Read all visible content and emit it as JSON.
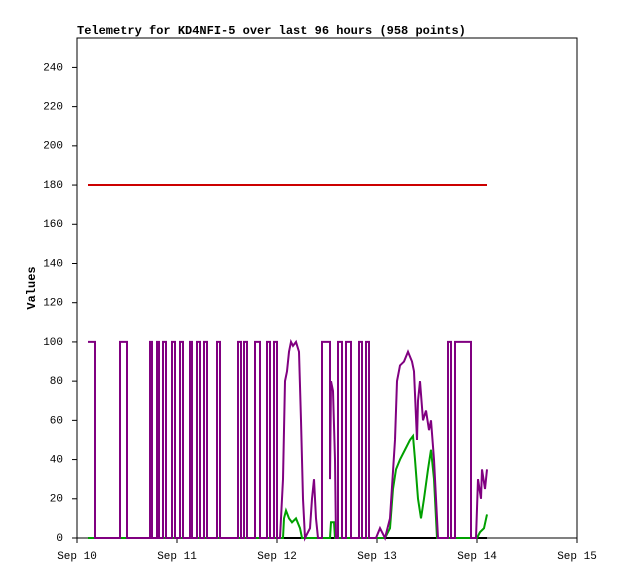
{
  "chart_data": {
    "type": "line",
    "title": "Telemetry for KD4NFI-5 over last 96 hours (958 points)",
    "y_label": "Values",
    "xlim": [
      10,
      15
    ],
    "xticks": [
      {
        "value": 10,
        "label": "Sep 10"
      },
      {
        "value": 11,
        "label": "Sep 11"
      },
      {
        "value": 12,
        "label": "Sep 12"
      },
      {
        "value": 13,
        "label": "Sep 13"
      },
      {
        "value": 14,
        "label": "Sep 14"
      },
      {
        "value": 15,
        "label": "Sep 15"
      }
    ],
    "ylim": [
      0,
      255
    ],
    "yticks": [
      0,
      20,
      40,
      60,
      80,
      100,
      120,
      140,
      160,
      180,
      200,
      220,
      240
    ],
    "grid": false,
    "series": [
      {
        "color": "#cc0000",
        "x": [
          10.11,
          14.1
        ],
        "values": [
          180,
          180
        ]
      },
      {
        "color": "#000000",
        "x": [
          10.11,
          14.1
        ],
        "values": [
          0,
          0
        ]
      },
      {
        "color": "#00a000",
        "x": [
          10.11,
          12.06,
          12.07,
          12.09,
          12.12,
          12.15,
          12.19,
          12.23,
          12.25,
          12.53,
          12.54,
          12.57,
          12.58,
          13.08,
          13.13,
          13.16,
          13.19,
          13.23,
          13.28,
          13.33,
          13.36,
          13.38,
          13.41,
          13.44,
          13.47,
          13.51,
          13.54,
          13.57,
          13.59,
          13.6,
          14,
          14.03,
          14.07,
          14.1
        ],
        "values": [
          0,
          0,
          10,
          14,
          10,
          8,
          10,
          5,
          0,
          0,
          8,
          8,
          0,
          0,
          5,
          25,
          35,
          40,
          45,
          50,
          52,
          40,
          20,
          10,
          20,
          35,
          45,
          30,
          10,
          0,
          0,
          3,
          5,
          12
        ]
      },
      {
        "color": "#800080",
        "x": [
          10.11,
          10.18,
          10.18,
          10.43,
          10.43,
          10.5,
          10.5,
          10.73,
          10.73,
          10.75,
          10.75,
          10.8,
          10.8,
          10.82,
          10.82,
          10.86,
          10.86,
          10.89,
          10.89,
          10.95,
          10.95,
          10.98,
          10.98,
          11.03,
          11.03,
          11.06,
          11.06,
          11.13,
          11.13,
          11.15,
          11.15,
          11.2,
          11.2,
          11.23,
          11.23,
          11.27,
          11.27,
          11.3,
          11.3,
          11.4,
          11.4,
          11.43,
          11.43,
          11.61,
          11.61,
          11.64,
          11.64,
          11.67,
          11.67,
          11.7,
          11.7,
          11.78,
          11.78,
          11.83,
          11.83,
          11.9,
          11.9,
          11.93,
          11.93,
          11.97,
          11.97,
          12,
          12,
          12.03,
          12.06,
          12.08,
          12.1,
          12.12,
          12.14,
          12.16,
          12.19,
          12.22,
          12.24,
          12.26,
          12.28,
          12.33,
          12.35,
          12.37,
          12.39,
          12.41,
          12.45,
          12.45,
          12.53,
          12.53,
          12.54,
          12.56,
          12.58,
          12.59,
          12.61,
          12.61,
          12.65,
          12.65,
          12.69,
          12.69,
          12.74,
          12.74,
          12.82,
          12.82,
          12.85,
          12.85,
          12.89,
          12.89,
          12.92,
          12.92,
          12.99,
          13.03,
          13.08,
          13.13,
          13.18,
          13.2,
          13.23,
          13.27,
          13.31,
          13.35,
          13.37,
          13.4,
          13.41,
          13.43,
          13.46,
          13.49,
          13.52,
          13.54,
          13.57,
          13.59,
          13.61,
          13.71,
          13.71,
          13.74,
          13.74,
          13.78,
          13.78,
          13.94,
          13.94,
          13.99,
          14.01,
          14.04,
          14.05,
          14.08,
          14.1
        ],
        "values": [
          100,
          100,
          0,
          0,
          100,
          100,
          0,
          0,
          100,
          100,
          0,
          0,
          100,
          100,
          0,
          0,
          100,
          100,
          0,
          0,
          100,
          100,
          0,
          0,
          100,
          100,
          0,
          0,
          100,
          100,
          0,
          0,
          100,
          100,
          0,
          0,
          100,
          100,
          0,
          0,
          100,
          100,
          0,
          0,
          100,
          100,
          0,
          0,
          100,
          100,
          0,
          0,
          100,
          100,
          0,
          0,
          100,
          100,
          0,
          0,
          100,
          100,
          0,
          0,
          30,
          80,
          85,
          95,
          100,
          98,
          100,
          95,
          60,
          20,
          0,
          5,
          20,
          30,
          10,
          0,
          0,
          100,
          100,
          30,
          80,
          75,
          40,
          0,
          0,
          100,
          100,
          0,
          0,
          100,
          100,
          0,
          0,
          100,
          100,
          0,
          0,
          100,
          100,
          0,
          0,
          5,
          0,
          10,
          50,
          80,
          88,
          90,
          95,
          90,
          85,
          50,
          70,
          80,
          60,
          65,
          55,
          60,
          40,
          20,
          0,
          0,
          100,
          100,
          0,
          0,
          100,
          100,
          0,
          0,
          30,
          20,
          35,
          25,
          35
        ]
      }
    ]
  }
}
